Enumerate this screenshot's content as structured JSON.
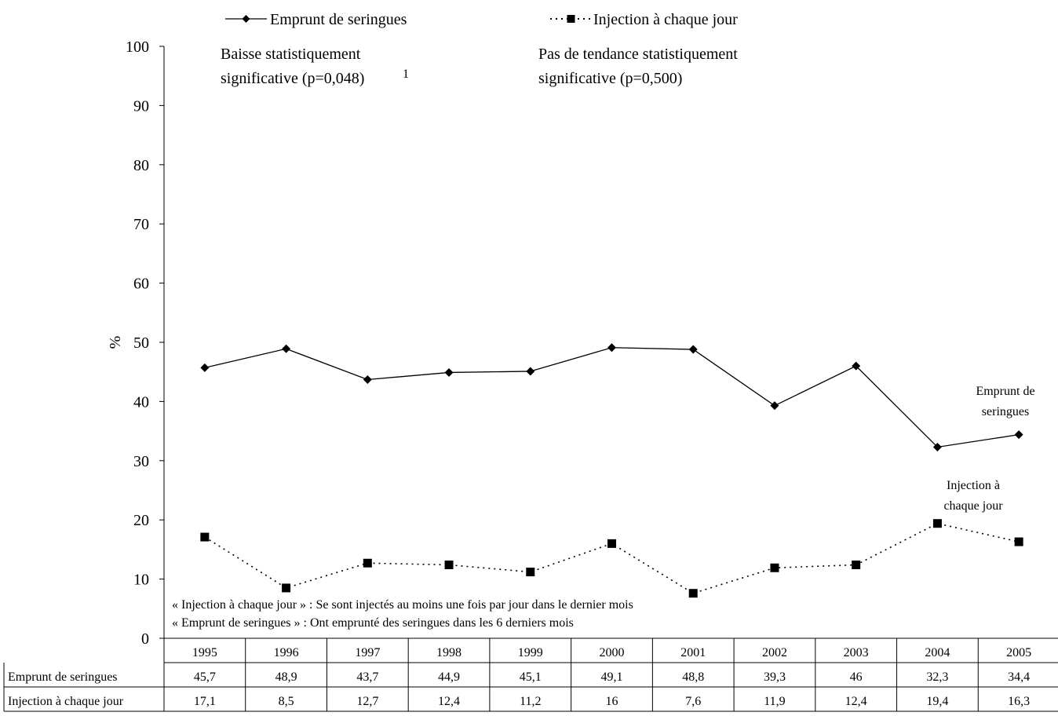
{
  "chart_data": {
    "type": "line",
    "xlabel": "",
    "ylabel": "%",
    "ylim": [
      0,
      100
    ],
    "yticks": [
      0,
      10,
      20,
      30,
      40,
      50,
      60,
      70,
      80,
      90,
      100
    ],
    "grid": false,
    "legend_position": "top",
    "categories": [
      "1995",
      "1996",
      "1997",
      "1998",
      "1999",
      "2000",
      "2001",
      "2002",
      "2003",
      "2004",
      "2005"
    ],
    "series": [
      {
        "name": "Emprunt de seringues",
        "values": [
          45.7,
          48.9,
          43.7,
          44.9,
          45.1,
          49.1,
          48.8,
          39.3,
          46.0,
          32.3,
          34.4
        ],
        "table_labels": [
          "45,7",
          "48,9",
          "43,7",
          "44,9",
          "45,1",
          "49,1",
          "48,8",
          "39,3",
          "46",
          "32,3",
          "34,4"
        ],
        "end_label": [
          "Emprunt de",
          "seringues"
        ],
        "line_style": "solid",
        "marker": "diamond",
        "color": "#000000"
      },
      {
        "name": "Injection à chaque jour",
        "values": [
          17.1,
          8.5,
          12.7,
          12.4,
          11.2,
          16.0,
          7.6,
          11.9,
          12.4,
          19.4,
          16.3
        ],
        "table_labels": [
          "17,1",
          "8,5",
          "12,7",
          "12,4",
          "11,2",
          "16",
          "7,6",
          "11,9",
          "12,4",
          "19,4",
          "16,3"
        ],
        "end_label": [
          "Injection à",
          "chaque jour"
        ],
        "line_style": "dotted",
        "marker": "square",
        "color": "#000000"
      }
    ],
    "annotations": {
      "trend_1": [
        "Baisse statistiquement",
        "significative (p=0,048)"
      ],
      "trend_1_sup": "1",
      "trend_2": [
        "Pas de tendance statistiquement",
        "significative (p=0,500)"
      ],
      "notes": [
        "« Injection à chaque jour » : Se sont injectés au moins une fois par jour dans le dernier mois",
        "« Emprunt de seringues » : Ont emprunté des seringues dans les 6 derniers mois"
      ]
    }
  }
}
